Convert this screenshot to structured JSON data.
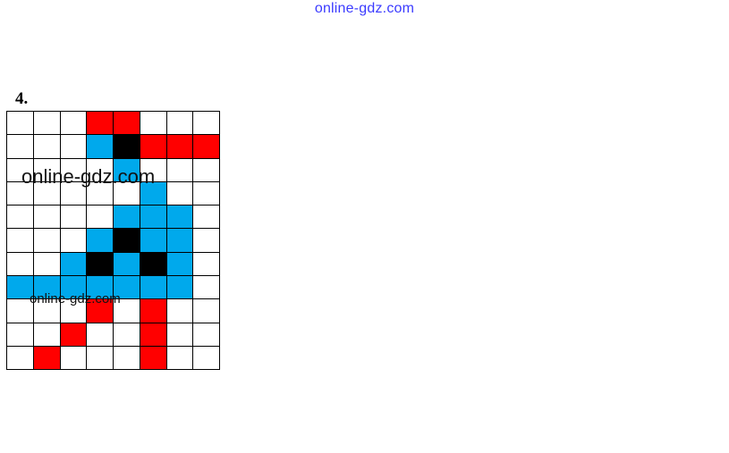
{
  "watermark_top": "online-gdz.com",
  "exercise_number": "4.",
  "watermark_large": "online-gdz.com",
  "watermark_small": "online-gdz.com",
  "colors": {
    "R": "#ff0000",
    "B": "#00a9ec",
    "K": "#000000",
    ".": "#ffffff"
  },
  "grid": [
    "...RR...",
    "...BKRRR",
    "....B...",
    ".....B..",
    "....BBB.",
    "...BKBB.",
    "..BKBKB.",
    "BBBBBBB.",
    "...R.R..",
    "..R..R..",
    ".R...R.."
  ]
}
